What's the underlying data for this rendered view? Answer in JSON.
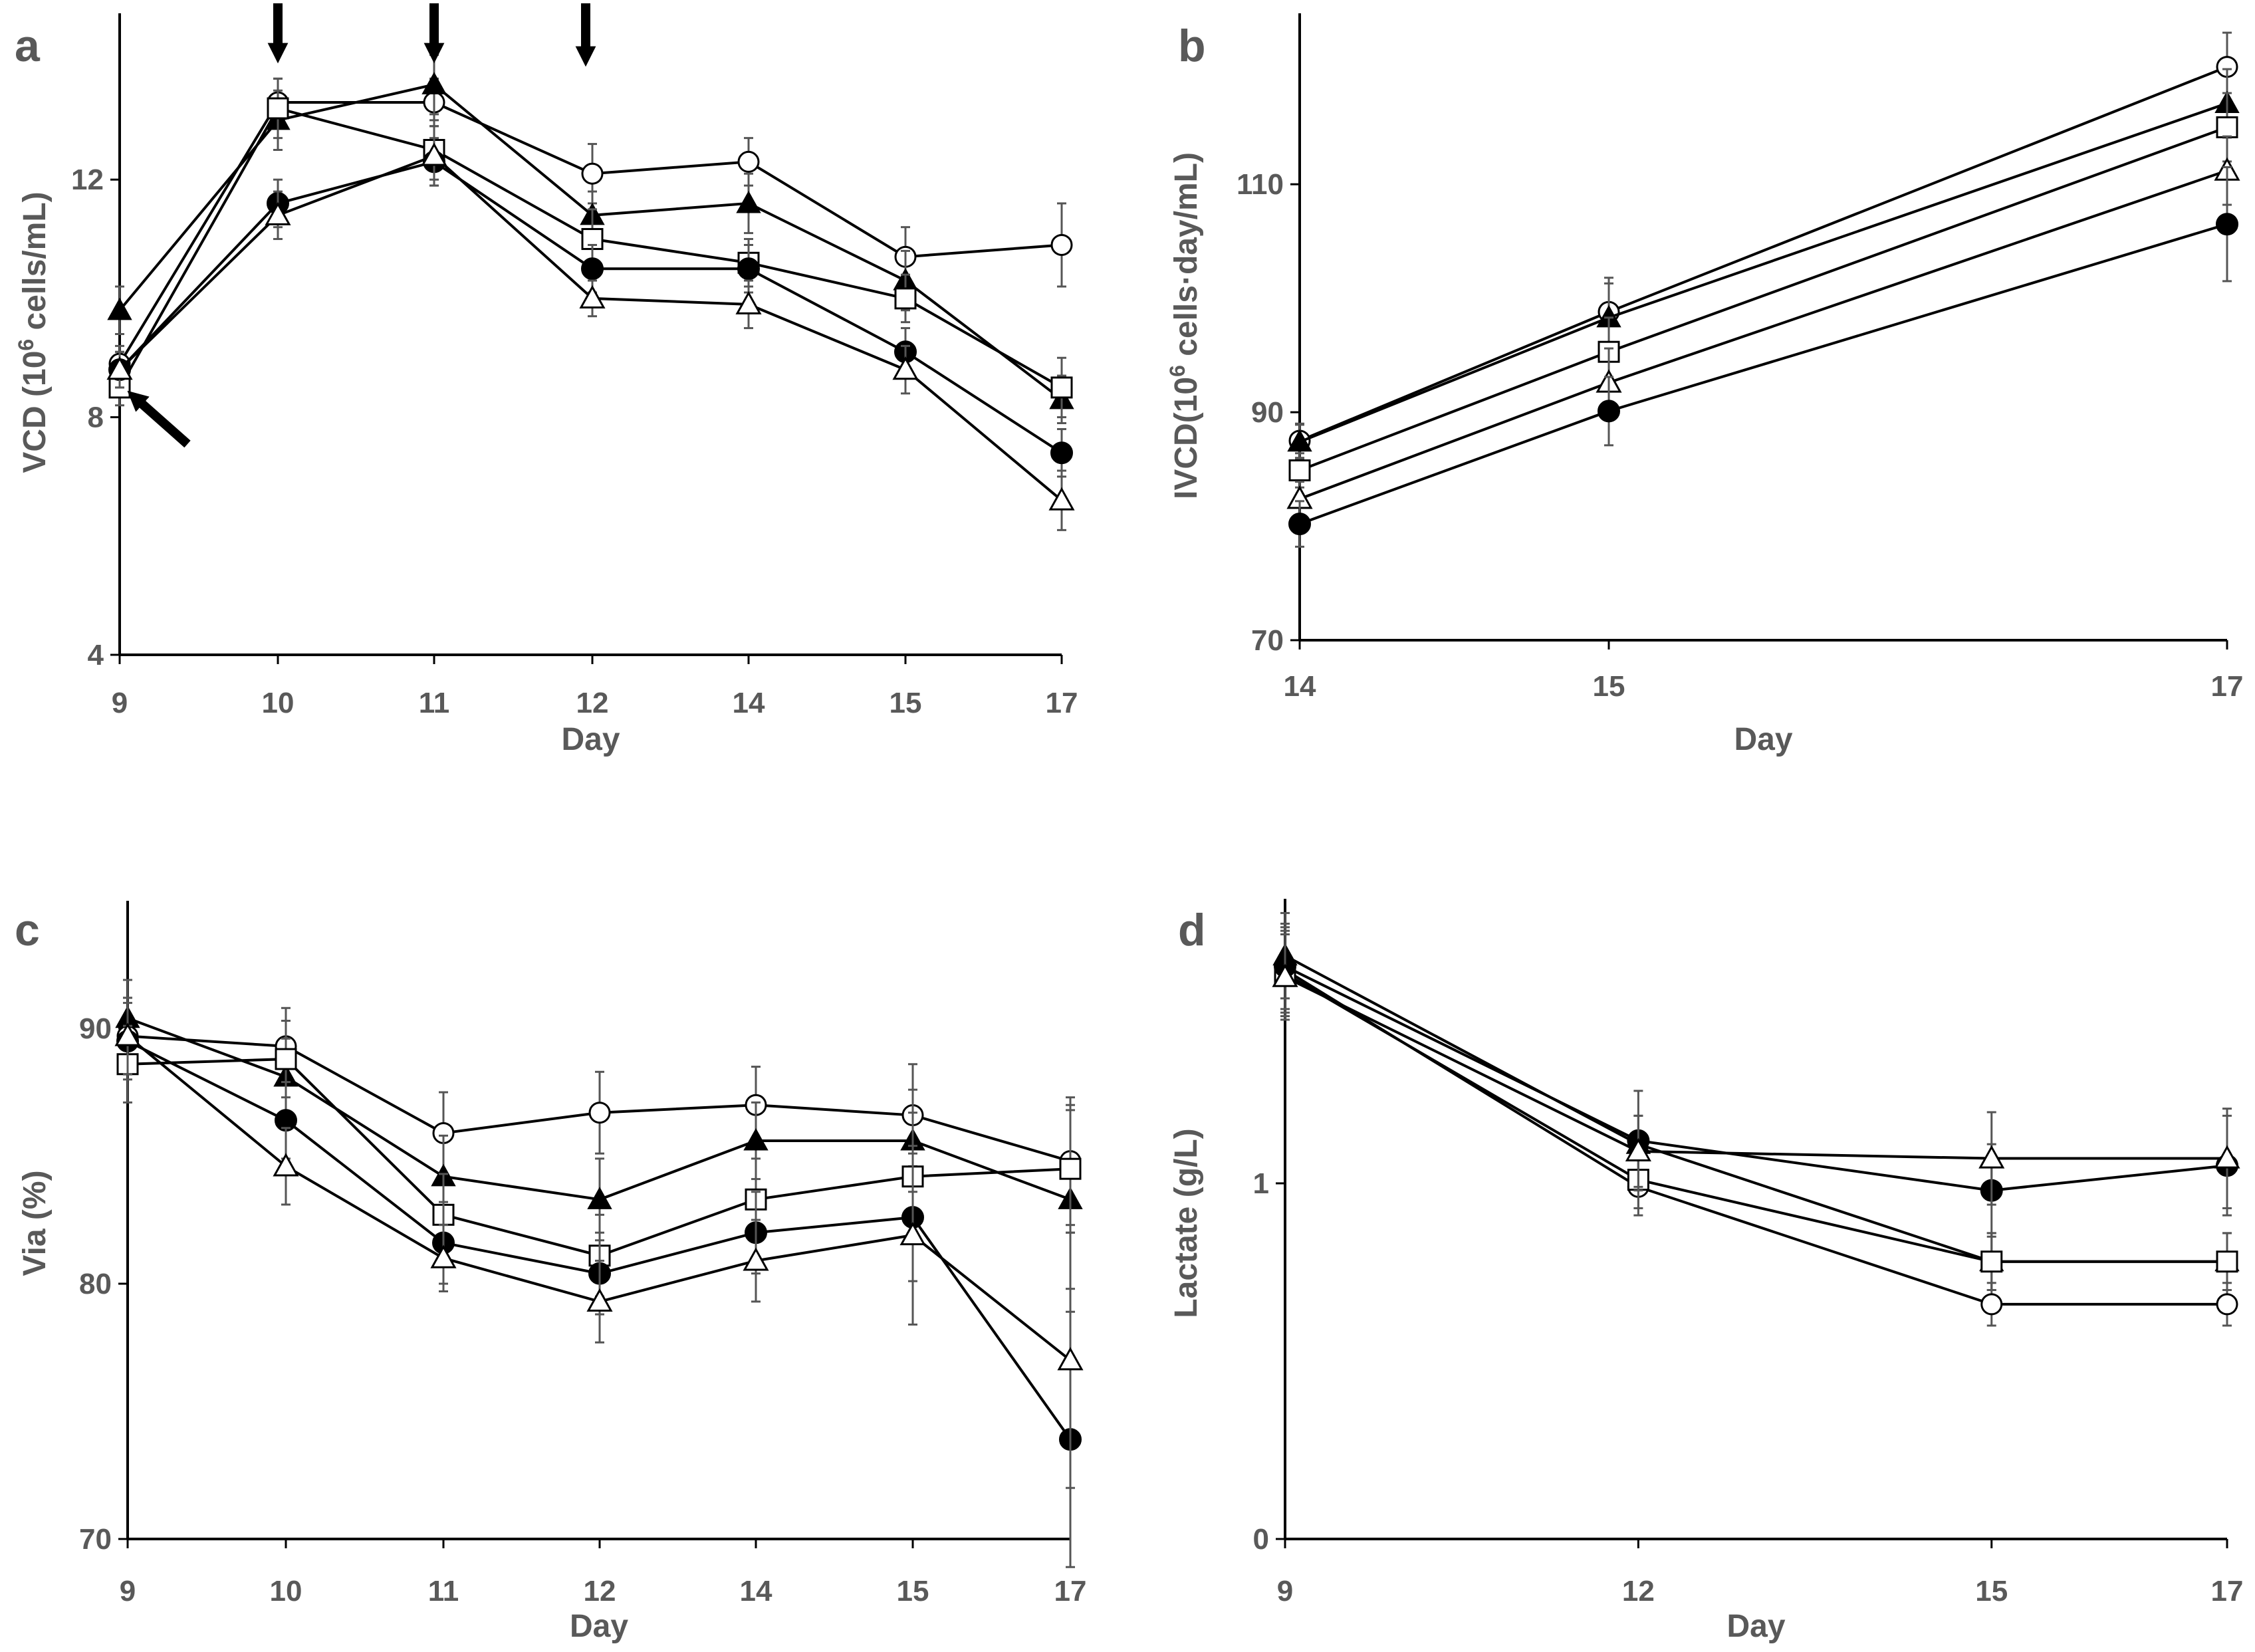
{
  "figure": {
    "panels": [
      "a",
      "b",
      "c",
      "d"
    ]
  },
  "chart_data": [
    {
      "panel": "a",
      "type": "line",
      "xlabel": "Day",
      "ylabel_parts": [
        "VCD (10",
        "6",
        " cells/mL)"
      ],
      "categories": [
        "9",
        "10",
        "11",
        "12",
        "14",
        "15",
        "17"
      ],
      "yticks": [
        4,
        8,
        12
      ],
      "ylim": [
        4,
        14.8
      ],
      "annotations": [
        {
          "kind": "arrow-down",
          "at": "10"
        },
        {
          "kind": "arrow-down",
          "at": "11"
        },
        {
          "kind": "arrow-down",
          "at": "12"
        },
        {
          "kind": "arrow-up-left",
          "at": "9"
        }
      ],
      "series": [
        {
          "marker": "open-circle",
          "values": [
            8.9,
            13.3,
            13.3,
            12.1,
            12.3,
            10.7,
            10.9
          ],
          "errors": [
            0.3,
            0.4,
            0.4,
            0.5,
            0.4,
            0.5,
            0.7
          ]
        },
        {
          "marker": "filled-triangle",
          "values": [
            9.8,
            13.0,
            13.6,
            11.4,
            11.6,
            10.3,
            8.3
          ],
          "errors": [
            0.4,
            0.5,
            0.5,
            0.4,
            0.5,
            0.5,
            0.4
          ]
        },
        {
          "marker": "open-square",
          "values": [
            8.5,
            13.2,
            12.5,
            11.0,
            10.6,
            10.0,
            8.5
          ],
          "errors": [
            0.3,
            0.5,
            0.5,
            0.5,
            0.4,
            0.4,
            0.5
          ]
        },
        {
          "marker": "filled-circle",
          "values": [
            8.8,
            11.6,
            12.3,
            10.5,
            10.5,
            9.1,
            7.4
          ],
          "errors": [
            0.3,
            0.4,
            0.4,
            0.4,
            0.4,
            0.4,
            0.4
          ]
        },
        {
          "marker": "open-triangle",
          "values": [
            8.8,
            11.4,
            12.4,
            10.0,
            9.9,
            8.8,
            6.6
          ],
          "errors": [
            0.3,
            0.4,
            0.5,
            0.3,
            0.4,
            0.4,
            0.5
          ]
        }
      ]
    },
    {
      "panel": "b",
      "type": "line",
      "xlabel": "Day",
      "ylabel_parts": [
        "IVCD(10",
        "6",
        " cells·day/mL)"
      ],
      "categories": [
        "14",
        "15",
        "17"
      ],
      "x_positions": [
        14,
        15,
        17
      ],
      "yticks": [
        70,
        90,
        110
      ],
      "ylim": [
        70,
        125
      ],
      "series": [
        {
          "marker": "open-circle",
          "values": [
            87.5,
            98.8,
            120.3
          ],
          "errors": [
            1.5,
            3,
            3
          ]
        },
        {
          "marker": "filled-triangle",
          "values": [
            87.4,
            98.3,
            117.1
          ],
          "errors": [
            1.5,
            3,
            3
          ]
        },
        {
          "marker": "open-square",
          "values": [
            84.9,
            95.3,
            115.0
          ],
          "errors": [
            1.5,
            3,
            3
          ]
        },
        {
          "marker": "open-triangle",
          "values": [
            82.4,
            92.6,
            111.2
          ],
          "errors": [
            1.5,
            3,
            3
          ]
        },
        {
          "marker": "filled-circle",
          "values": [
            80.2,
            90.1,
            106.5
          ],
          "errors": [
            2,
            3,
            5
          ]
        }
      ]
    },
    {
      "panel": "c",
      "type": "line",
      "xlabel": "Day",
      "ylabel": "Via (%)",
      "categories": [
        "9",
        "10",
        "11",
        "12",
        "14",
        "15",
        "17"
      ],
      "yticks": [
        70,
        80,
        90
      ],
      "ylim": [
        70,
        95
      ],
      "series": [
        {
          "marker": "open-circle",
          "values": [
            89.7,
            89.3,
            85.9,
            86.7,
            87.0,
            86.6,
            84.8
          ],
          "errors": [
            1.5,
            1.5,
            1.6,
            1.6,
            1.5,
            2.0,
            2.5
          ]
        },
        {
          "marker": "filled-triangle",
          "values": [
            90.4,
            88.1,
            84.2,
            83.3,
            85.6,
            85.6,
            83.3
          ],
          "errors": [
            1.5,
            1.5,
            1.6,
            1.6,
            1.5,
            2.0,
            3.5
          ]
        },
        {
          "marker": "open-square",
          "values": [
            88.6,
            88.8,
            82.7,
            81.1,
            83.3,
            84.2,
            84.5
          ],
          "errors": [
            1.5,
            1.5,
            1.6,
            1.6,
            1.6,
            2.5,
            2.5
          ]
        },
        {
          "marker": "filled-circle",
          "values": [
            89.5,
            86.4,
            81.6,
            80.4,
            82.0,
            82.6,
            73.9
          ],
          "errors": [
            1.5,
            1.5,
            1.6,
            1.6,
            1.6,
            2.5,
            5.0
          ]
        },
        {
          "marker": "open-triangle",
          "values": [
            89.7,
            84.6,
            81.0,
            79.3,
            80.9,
            81.9,
            77.0
          ],
          "errors": [
            1.5,
            1.5,
            1.3,
            1.6,
            1.6,
            3.5,
            5.0
          ]
        }
      ]
    },
    {
      "panel": "d",
      "type": "line",
      "xlabel": "Day",
      "ylabel": "Lactate (g/L)",
      "categories": [
        "9",
        "12",
        "15",
        "17"
      ],
      "x_positions": [
        9,
        12,
        15,
        17
      ],
      "yticks": [
        0,
        1
      ],
      "ylim": [
        0,
        1.8
      ],
      "series": [
        {
          "marker": "open-circle",
          "values": [
            1.6,
            0.99,
            0.66,
            0.66
          ],
          "errors": [
            0.12,
            0.08,
            0.06,
            0.06
          ]
        },
        {
          "marker": "filled-triangle",
          "values": [
            1.64,
            1.11,
            0.78,
            0.78
          ],
          "errors": [
            0.12,
            0.08,
            0.08,
            0.08
          ]
        },
        {
          "marker": "open-square",
          "values": [
            1.59,
            1.01,
            0.78,
            0.78
          ],
          "errors": [
            0.12,
            0.08,
            0.08,
            0.08
          ]
        },
        {
          "marker": "filled-circle",
          "values": [
            1.61,
            1.12,
            0.98,
            1.05
          ],
          "errors": [
            0.12,
            0.14,
            0.13,
            0.14
          ]
        },
        {
          "marker": "open-triangle",
          "values": [
            1.58,
            1.09,
            1.07,
            1.07
          ],
          "errors": [
            0.12,
            0.1,
            0.13,
            0.14
          ]
        }
      ]
    }
  ]
}
